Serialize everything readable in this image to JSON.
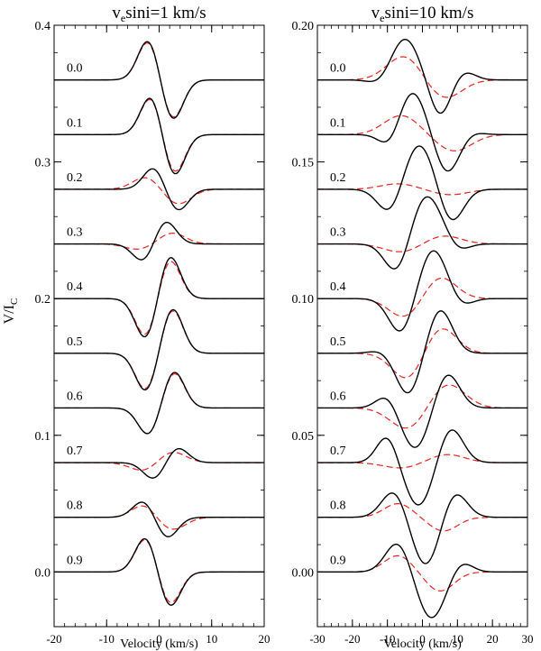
{
  "figure": {
    "ylabel_main": "V/I",
    "ylabel_sub": "C"
  },
  "colors": {
    "observed": "#000000",
    "model": "#e8231f",
    "frame": "#000000"
  },
  "chart_data": [
    {
      "type": "line",
      "title_main": "v",
      "title_sub": "e",
      "title_rest": "sini=1 km/s",
      "xlabel": "Velocity (km/s)",
      "ylabel": "V/I_C",
      "xlim": [
        -20,
        20
      ],
      "ylim": [
        -0.04,
        0.4
      ],
      "xticks": [
        -20,
        -10,
        0,
        10,
        20
      ],
      "yticks": [
        0.0,
        0.1,
        0.2,
        0.3,
        0.4
      ],
      "ytick_labels": [
        "0.0",
        "0.1",
        "0.2",
        "0.3",
        "0.4"
      ],
      "grid": false,
      "series_styles": {
        "solid": "black solid",
        "dashed": "red dashed"
      },
      "phases": [
        {
          "label": "0.0",
          "offset": 0.36,
          "solid": {
            "A1": 0.03,
            "c1": -2.0,
            "s1": 2.0,
            "A2": -0.03,
            "c2": 2.5,
            "s2": 2.0
          },
          "dashed": {
            "A1": 0.029,
            "c1": -2.0,
            "s1": 2.0,
            "A2": -0.029,
            "c2": 2.5,
            "s2": 2.0
          }
        },
        {
          "label": "0.1",
          "offset": 0.32,
          "solid": {
            "A1": 0.029,
            "c1": -1.5,
            "s1": 2.0,
            "A2": -0.031,
            "c2": 2.8,
            "s2": 2.0
          },
          "dashed": {
            "A1": 0.028,
            "c1": -1.5,
            "s1": 2.0,
            "A2": -0.029,
            "c2": 2.8,
            "s2": 2.0
          }
        },
        {
          "label": "0.2",
          "offset": 0.28,
          "solid": {
            "A1": 0.016,
            "c1": -1.0,
            "s1": 2.0,
            "A2": -0.016,
            "c2": 3.5,
            "s2": 2.0
          },
          "dashed": {
            "A1": 0.009,
            "c1": -2.5,
            "s1": 2.5,
            "A2": -0.011,
            "c2": 3.5,
            "s2": 2.5
          }
        },
        {
          "label": "0.3",
          "offset": 0.24,
          "solid": {
            "A1": -0.013,
            "c1": -3.0,
            "s1": 2.0,
            "A2": 0.017,
            "c2": 1.2,
            "s2": 2.0
          },
          "dashed": {
            "A1": -0.004,
            "c1": -4.0,
            "s1": 2.5,
            "A2": 0.008,
            "c2": 2.5,
            "s2": 2.5
          }
        },
        {
          "label": "0.4",
          "offset": 0.2,
          "solid": {
            "A1": -0.03,
            "c1": -2.5,
            "s1": 2.0,
            "A2": 0.032,
            "c2": 2.0,
            "s2": 2.0
          },
          "dashed": {
            "A1": -0.028,
            "c1": -2.5,
            "s1": 2.0,
            "A2": 0.029,
            "c2": 2.0,
            "s2": 2.0
          }
        },
        {
          "label": "0.5",
          "offset": 0.16,
          "solid": {
            "A1": -0.028,
            "c1": -2.5,
            "s1": 2.0,
            "A2": 0.033,
            "c2": 2.5,
            "s2": 2.0
          },
          "dashed": {
            "A1": -0.027,
            "c1": -2.5,
            "s1": 2.0,
            "A2": 0.032,
            "c2": 2.5,
            "s2": 2.0
          }
        },
        {
          "label": "0.6",
          "offset": 0.12,
          "solid": {
            "A1": -0.02,
            "c1": -2.0,
            "s1": 2.0,
            "A2": 0.027,
            "c2": 2.8,
            "s2": 2.0
          },
          "dashed": {
            "A1": -0.02,
            "c1": -2.0,
            "s1": 2.0,
            "A2": 0.026,
            "c2": 2.8,
            "s2": 2.0
          }
        },
        {
          "label": "0.7",
          "offset": 0.08,
          "solid": {
            "A1": -0.012,
            "c1": -1.0,
            "s1": 2.0,
            "A2": 0.011,
            "c2": 3.5,
            "s2": 2.0
          },
          "dashed": {
            "A1": -0.006,
            "c1": -3.0,
            "s1": 2.5,
            "A2": 0.008,
            "c2": 2.5,
            "s2": 2.5
          }
        },
        {
          "label": "0.8",
          "offset": 0.04,
          "solid": {
            "A1": 0.012,
            "c1": -3.0,
            "s1": 2.0,
            "A2": -0.015,
            "c2": 1.5,
            "s2": 2.0
          },
          "dashed": {
            "A1": 0.009,
            "c1": -3.0,
            "s1": 2.2,
            "A2": -0.009,
            "c2": 2.5,
            "s2": 2.5
          }
        },
        {
          "label": "0.9",
          "offset": 0.0,
          "solid": {
            "A1": 0.026,
            "c1": -2.5,
            "s1": 2.0,
            "A2": -0.026,
            "c2": 2.0,
            "s2": 2.0
          },
          "dashed": {
            "A1": 0.025,
            "c1": -2.5,
            "s1": 2.0,
            "A2": -0.024,
            "c2": 2.0,
            "s2": 2.0
          }
        }
      ]
    },
    {
      "type": "line",
      "title_main": "v",
      "title_sub": "e",
      "title_rest": "sini=10 km/s",
      "xlabel": "Velocity (km/s)",
      "ylabel": "",
      "xlim": [
        -30,
        30
      ],
      "ylim": [
        -0.02,
        0.2
      ],
      "xticks": [
        -30,
        -20,
        -10,
        0,
        10,
        20,
        30
      ],
      "yticks": [
        0.0,
        0.05,
        0.1,
        0.15,
        0.2
      ],
      "ytick_labels": [
        "0.00",
        "0.05",
        "0.10",
        "0.15",
        "0.20"
      ],
      "grid": false,
      "series_styles": {
        "solid": "black solid",
        "dashed": "red dashed"
      },
      "phases": [
        {
          "label": "0.0",
          "offset": 0.18,
          "solid": {
            "A1": 0.015,
            "c1": -5.0,
            "s1": 4.0,
            "A2": -0.013,
            "c2": 5.0,
            "s2": 3.0,
            "A3": -0.002,
            "c3": -12,
            "s3": 3,
            "A4": 0.003,
            "c4": 12,
            "s4": 3
          },
          "dashed": {
            "A1": 0.009,
            "c1": -5.0,
            "s1": 5.0,
            "A2": -0.007,
            "c2": 6.0,
            "s2": 5.0
          }
        },
        {
          "label": "0.1",
          "offset": 0.16,
          "solid": {
            "A1": 0.016,
            "c1": -3.0,
            "s1": 4.0,
            "A2": -0.014,
            "c2": 7.0,
            "s2": 3.5,
            "A3": -0.006,
            "c3": -9,
            "s3": 3,
            "A4": 0.001,
            "c4": 14,
            "s4": 3
          },
          "dashed": {
            "A1": 0.007,
            "c1": -6.0,
            "s1": 5.0,
            "A2": -0.006,
            "c2": 9.0,
            "s2": 5.0
          }
        },
        {
          "label": "0.2",
          "offset": 0.14,
          "solid": {
            "A1": 0.017,
            "c1": -1.0,
            "s1": 4.5,
            "A2": -0.013,
            "c2": 8.0,
            "s2": 3.5,
            "A3": -0.01,
            "c3": -9,
            "s3": 3.5
          },
          "dashed": {
            "A1": 0.002,
            "c1": -7.0,
            "s1": 5.0,
            "A2": -0.002,
            "c2": 8.0,
            "s2": 5.0
          }
        },
        {
          "label": "0.3",
          "offset": 0.12,
          "solid": {
            "A1": 0.018,
            "c1": 1.0,
            "s1": 4.5,
            "A2": -0.012,
            "c2": -7.0,
            "s2": 3.5,
            "A3": -0.003,
            "c3": 10,
            "s3": 3
          },
          "dashed": {
            "A1": -0.003,
            "c1": -6.0,
            "s1": 5.0,
            "A2": 0.003,
            "c2": 6.0,
            "s2": 5.0
          }
        },
        {
          "label": "0.4",
          "offset": 0.1,
          "solid": {
            "A1": 0.018,
            "c1": 3.0,
            "s1": 4.0,
            "A2": -0.013,
            "c2": -6.0,
            "s2": 3.5,
            "A3": -0.003,
            "c3": 11,
            "s3": 3
          },
          "dashed": {
            "A1": -0.007,
            "c1": -5.0,
            "s1": 4.5,
            "A2": 0.008,
            "c2": 5.0,
            "s2": 4.5
          }
        },
        {
          "label": "0.5",
          "offset": 0.08,
          "solid": {
            "A1": 0.016,
            "c1": 5.0,
            "s1": 3.5,
            "A2": -0.015,
            "c2": -4.0,
            "s2": 3.5,
            "A3": 0.001,
            "c3": -12,
            "s3": 3
          },
          "dashed": {
            "A1": -0.01,
            "c1": -4.0,
            "s1": 4.5,
            "A2": 0.01,
            "c2": 5.0,
            "s2": 4.5
          }
        },
        {
          "label": "0.6",
          "offset": 0.06,
          "solid": {
            "A1": 0.013,
            "c1": 7.0,
            "s1": 3.5,
            "A2": -0.015,
            "c2": -2.0,
            "s2": 4.0,
            "A3": 0.005,
            "c3": -10,
            "s3": 3
          },
          "dashed": {
            "A1": -0.008,
            "c1": -4.0,
            "s1": 5.0,
            "A2": 0.009,
            "c2": 7.0,
            "s2": 5.0
          }
        },
        {
          "label": "0.7",
          "offset": 0.04,
          "solid": {
            "A1": 0.013,
            "c1": 8.0,
            "s1": 3.5,
            "A2": -0.016,
            "c2": -1.0,
            "s2": 4.0,
            "A3": 0.01,
            "c3": -10,
            "s3": 3
          },
          "dashed": {
            "A1": -0.002,
            "c1": -6.0,
            "s1": 5.0,
            "A2": 0.003,
            "c2": 7.0,
            "s2": 5.0
          }
        },
        {
          "label": "0.8",
          "offset": 0.02,
          "solid": {
            "A1": 0.01,
            "c1": -8.0,
            "s1": 3.5,
            "A2": -0.018,
            "c2": 1.0,
            "s2": 4.0,
            "A3": 0.01,
            "c3": 9,
            "s3": 3.5
          },
          "dashed": {
            "A1": 0.005,
            "c1": -7.0,
            "s1": 4.0,
            "A2": -0.005,
            "c2": 6.0,
            "s2": 4.0
          }
        },
        {
          "label": "0.9",
          "offset": 0.0,
          "solid": {
            "A1": 0.011,
            "c1": -7.0,
            "s1": 3.5,
            "A2": -0.017,
            "c2": 2.5,
            "s2": 4.0,
            "A3": 0.004,
            "c3": 11,
            "s3": 3
          },
          "dashed": {
            "A1": 0.006,
            "c1": -7.0,
            "s1": 4.0,
            "A2": -0.007,
            "c2": 5.0,
            "s2": 4.0
          }
        }
      ]
    }
  ]
}
